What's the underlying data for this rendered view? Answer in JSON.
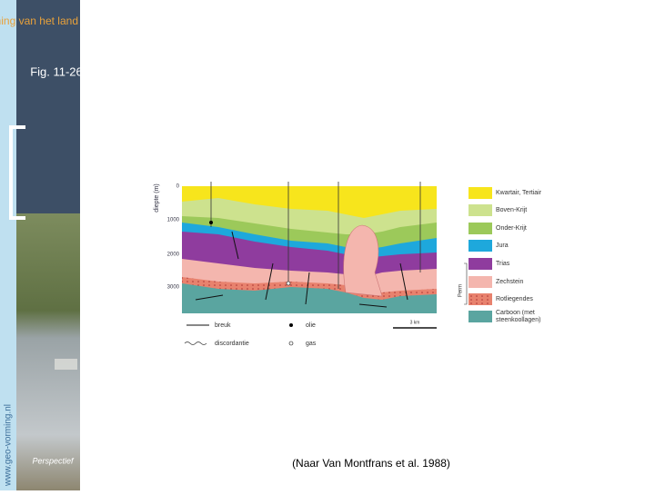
{
  "sidebar": {
    "title": "De vorming van het land",
    "figure": "Fig. 11-26",
    "url": "www.geo-vorming.nl",
    "logo": "Perspectief"
  },
  "diagram": {
    "axis_title": "diepte (m)",
    "depth_ticks": [
      "0",
      "1000",
      "2000",
      "3000"
    ],
    "legend": [
      "Kwartair, Tertiair",
      "Boven-Krijt",
      "Onder-Krijt",
      "Jura",
      "Trias",
      "Zechstein",
      "Rotliegendes",
      "Carboon (met steenkoollagen)"
    ],
    "perm": "Perm",
    "key": {
      "fault": "breuk",
      "oil": "olie",
      "unconformity": "discordantie",
      "gas": "gas",
      "scale": "3 km"
    }
  },
  "caption": "(Naar Van Montfrans et al. 1988)"
}
